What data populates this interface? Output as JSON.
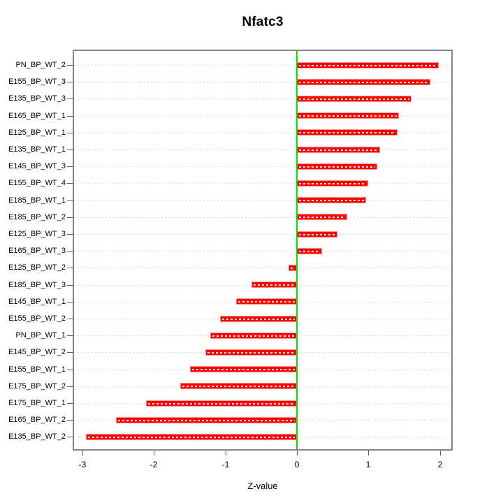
{
  "title": "Nfatc3",
  "chart_data": {
    "type": "bar",
    "orientation": "horizontal",
    "title": "Nfatc3",
    "xlabel": "Z-value",
    "categories": [
      "PN_BP_WT_2",
      "E155_BP_WT_3",
      "E135_BP_WT_3",
      "E165_BP_WT_1",
      "E125_BP_WT_1",
      "E135_BP_WT_1",
      "E145_BP_WT_3",
      "E155_BP_WT_4",
      "E185_BP_WT_1",
      "E185_BP_WT_2",
      "E125_BP_WT_3",
      "E165_BP_WT_3",
      "E125_BP_WT_2",
      "E185_BP_WT_3",
      "E145_BP_WT_1",
      "E155_BP_WT_2",
      "PN_BP_WT_1",
      "E145_BP_WT_2",
      "E155_BP_WT_1",
      "E175_BP_WT_2",
      "E175_BP_WT_1",
      "E165_BP_WT_2",
      "E135_BP_WT_2"
    ],
    "values": [
      1.98,
      1.87,
      1.6,
      1.43,
      1.41,
      1.16,
      1.12,
      1.0,
      0.97,
      0.7,
      0.57,
      0.35,
      -0.12,
      -0.64,
      -0.85,
      -1.08,
      -1.21,
      -1.28,
      -1.5,
      -1.63,
      -2.11,
      -2.53,
      -2.95
    ],
    "x_ticks": [
      -3,
      -2,
      -1,
      0,
      1,
      2
    ],
    "xlim": [
      -3.14,
      2.18
    ],
    "zero_line_x": 0,
    "grid": true,
    "legend": "none",
    "colors": {
      "bar": "#ff0000",
      "bar_edge": "#ff8a8a",
      "bar_stripe": "#ffffff",
      "zero_line": "#00e300",
      "box": "#878787",
      "grid": "#d8d8d8",
      "tick": "#5f5f5f",
      "text": "#000000"
    }
  }
}
